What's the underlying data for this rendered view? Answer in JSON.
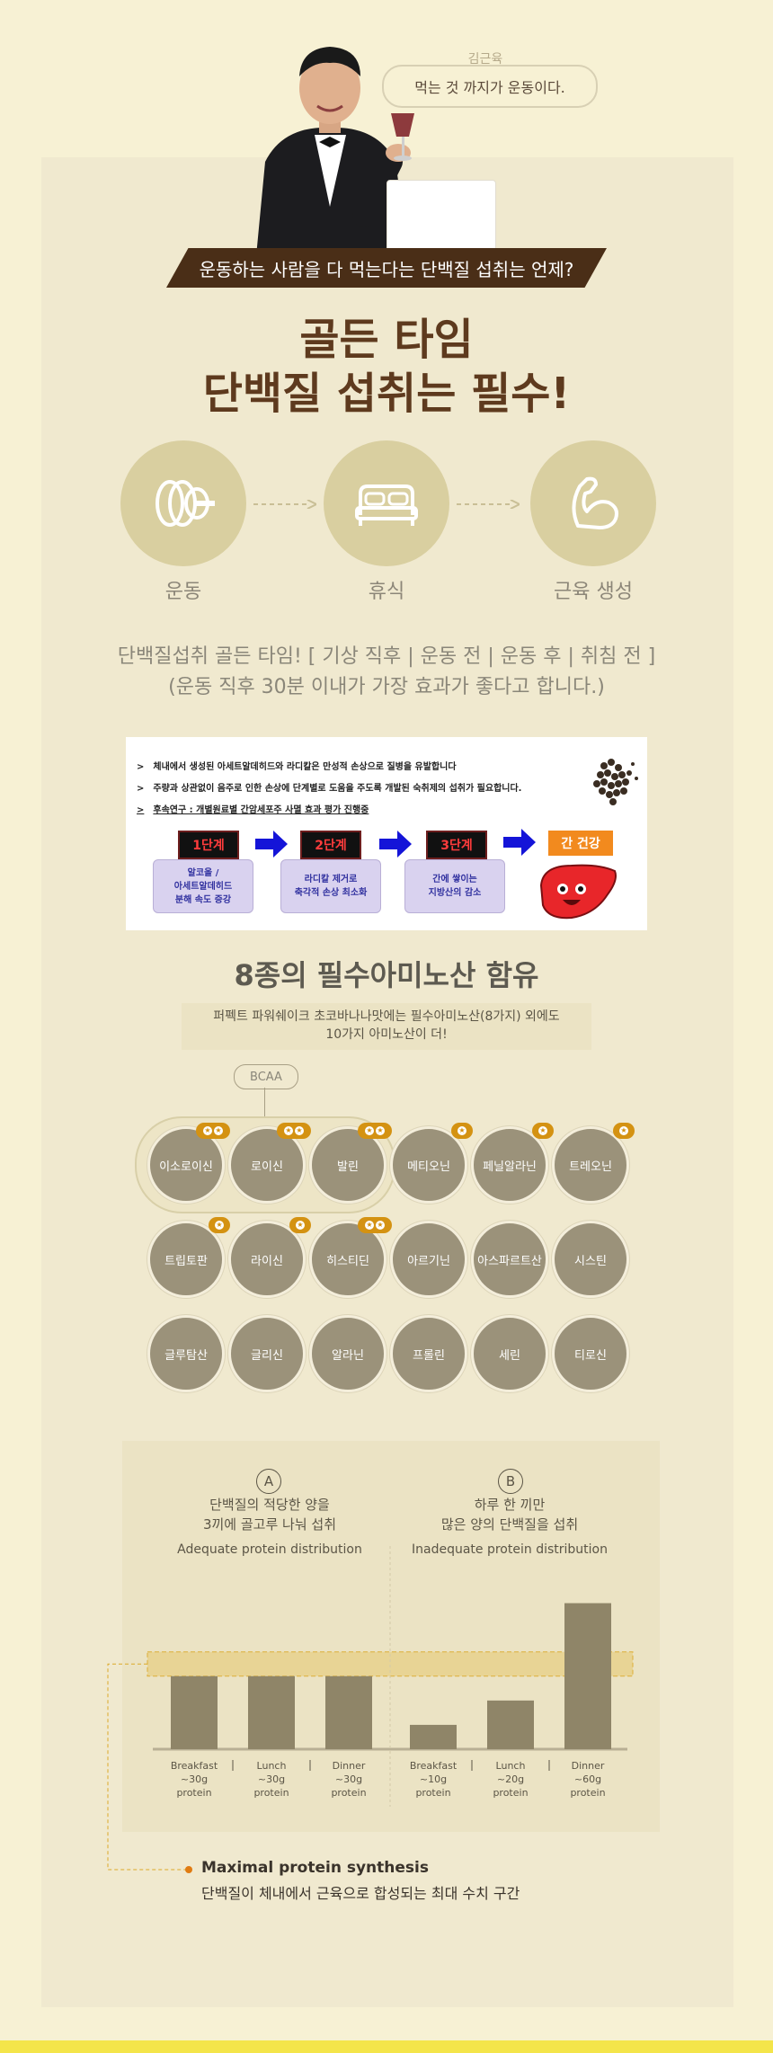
{
  "hero": {
    "quote_name": "김근육",
    "quote_text": "먹는 것 까지가 운동이다.",
    "banner": "운동하는 사람을 다 먹는다는 단백질 섭취는 언제?",
    "headline_line1": "골든 타임",
    "headline_line2": "단백질 섭취는 필수!"
  },
  "process": {
    "steps": [
      {
        "label": "운동",
        "icon": "barbell-plate-icon"
      },
      {
        "label": "휴식",
        "icon": "bed-icon"
      },
      {
        "label": "근육 생성",
        "icon": "muscle-arm-icon"
      }
    ],
    "golden_time_line1": "단백질섭취 골든 타임! [ 기상 직후 | 운동 전 | 운동 후 | 취침 전 ]",
    "golden_time_line2": "(운동 직후 30분 이내가 가장 효과가 좋다고 합니다.)"
  },
  "info": {
    "bullets": [
      "체내에서 생성된 아세트알데히드와  라디칼은  만성적 손상으로 질병을 유발합니다",
      "주량과 상관없이 음주로 인한 손상에 단계별로 도움을 주도록 개발된 숙취제의 섭취가 필요합니다.",
      "후속연구 : 개별원료별 간암세포주 사멸 효과 평가 진행중"
    ],
    "stages": [
      "1단계",
      "2단계",
      "3단계"
    ],
    "stage_descs": [
      "알코올 /\n아세트알데히드\n분해 속도 증강",
      "라디칼 제거로\n축각적 손상 최소화",
      "간에 쌓이는\n지방산의 감소"
    ],
    "health_label": "간 건강",
    "colors": {
      "stage_text": "#ff3c3c",
      "arrow": "#1414d8",
      "health": "#f28a1e"
    }
  },
  "amino": {
    "title": "8종의 필수아미노산 함유",
    "subtitle_line1": "퍼펙트 파워쉐이크 초코바나나맛에는 필수아미노산(8가지) 외에도",
    "subtitle_line2": "10가지 아미노산이 더!",
    "bcaa_label": "BCAA",
    "acids": [
      {
        "name": "이소로이신",
        "badges": 2
      },
      {
        "name": "로이신",
        "badges": 2
      },
      {
        "name": "발린",
        "badges": 2
      },
      {
        "name": "메티오닌",
        "badges": 1
      },
      {
        "name": "페닐알라닌",
        "badges": 1
      },
      {
        "name": "트레오닌",
        "badges": 1
      },
      {
        "name": "트립토판",
        "badges": 1
      },
      {
        "name": "라이신",
        "badges": 1
      },
      {
        "name": "히스티딘",
        "badges": 2
      },
      {
        "name": "아르기닌",
        "badges": 0
      },
      {
        "name": "아스파르트산",
        "badges": 0
      },
      {
        "name": "시스틴",
        "badges": 0
      },
      {
        "name": "글루탐산",
        "badges": 0
      },
      {
        "name": "글리신",
        "badges": 0
      },
      {
        "name": "알라닌",
        "badges": 0
      },
      {
        "name": "프롤린",
        "badges": 0
      },
      {
        "name": "세린",
        "badges": 0
      },
      {
        "name": "티로신",
        "badges": 0
      }
    ]
  },
  "chart_data": {
    "type": "bar",
    "ylim": [
      0,
      65
    ],
    "threshold_band": [
      30,
      40
    ],
    "panels": [
      {
        "letter": "A",
        "title_line1": "단백질의 적당한 양을",
        "title_line2": "3끼에 골고루 나눠 섭취",
        "subtitle": "Adequate protein distribution",
        "categories": [
          "Breakfast",
          "Lunch",
          "Dinner"
        ],
        "amount_labels": [
          "~30g",
          "~30g",
          "~30g"
        ],
        "unit_label": "protein",
        "values": [
          30,
          30,
          30
        ]
      },
      {
        "letter": "B",
        "title_line1": "하루 한 끼만",
        "title_line2": "많은 양의 단백질을 섭취",
        "subtitle": "Inadequate protein distribution",
        "categories": [
          "Breakfast",
          "Lunch",
          "Dinner"
        ],
        "amount_labels": [
          "~10g",
          "~20g",
          "~60g"
        ],
        "unit_label": "protein",
        "values": [
          10,
          20,
          60
        ]
      }
    ],
    "legend_title": "Maximal protein synthesis",
    "legend_sub": "단백질이 체내에서 근육으로 합성되는 최대 수치 구간",
    "colors": {
      "bar": "#8f8568",
      "band": "#e8d391",
      "band_border": "#dba929"
    }
  }
}
